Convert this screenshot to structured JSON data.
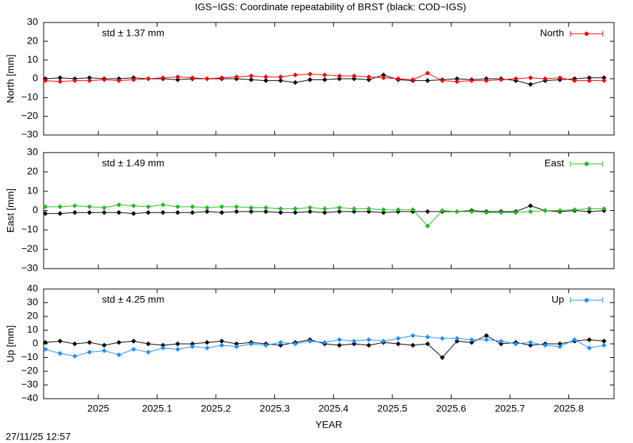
{
  "title": "IGS−IGS: Coordinate repeatability of BRST (black: COD−IGS)",
  "timestamp": "27/11/25 12:57",
  "chart_data": [
    {
      "type": "line",
      "ylabel": "North [mm]",
      "annotation": "std ± 1.37 mm",
      "annotation_color": "#ff0000",
      "legend": "top-right",
      "x": [
        2024.91,
        2024.935,
        2024.96,
        2024.985,
        2025.01,
        2025.035,
        2025.06,
        2025.085,
        2025.11,
        2025.135,
        2025.16,
        2025.185,
        2025.21,
        2025.235,
        2025.26,
        2025.285,
        2025.31,
        2025.335,
        2025.36,
        2025.385,
        2025.41,
        2025.435,
        2025.46,
        2025.485,
        2025.51,
        2025.535,
        2025.56,
        2025.585,
        2025.61,
        2025.635,
        2025.66,
        2025.685,
        2025.71,
        2025.735,
        2025.76,
        2025.785,
        2025.81,
        2025.835,
        2025.86
      ],
      "series": [
        {
          "color": "#000000",
          "values": [
            0,
            0.5,
            0,
            0.5,
            0,
            0,
            0.5,
            0,
            0,
            -0.5,
            0,
            0,
            0,
            0,
            -0.5,
            -1,
            -1,
            -2,
            -0.5,
            -0.5,
            0,
            0,
            -0.5,
            2,
            -0.5,
            -1,
            -1,
            -0.5,
            0,
            -0.5,
            0,
            0,
            -1,
            -3,
            -1,
            -0.5,
            0,
            0.5,
            0.5
          ]
        },
        {
          "name": "North",
          "color": "#ff0000",
          "values": [
            -1,
            -1.5,
            -1,
            -1,
            -0.5,
            -1,
            -0.5,
            0,
            0.5,
            1,
            0.5,
            0,
            0.5,
            1,
            1.5,
            1,
            1,
            2,
            2.5,
            2,
            1.5,
            1.5,
            1,
            0.5,
            0,
            -0.5,
            3,
            -1,
            -1.5,
            -1,
            -1,
            -0.5,
            0,
            0.5,
            0,
            0.5,
            -1,
            -1,
            -1
          ]
        }
      ],
      "xlim": [
        2024.907,
        2025.877
      ],
      "xticks": [
        2025,
        2025.1,
        2025.2,
        2025.3,
        2025.4,
        2025.5,
        2025.6,
        2025.7,
        2025.8
      ],
      "ylim": [
        -30,
        30
      ],
      "yticks": [
        {
          "value": -30,
          "label": "−30"
        },
        {
          "value": -20,
          "label": "−20"
        },
        {
          "value": -10,
          "label": "−10"
        },
        0,
        10,
        20,
        30
      ]
    },
    {
      "type": "line",
      "ylabel": "East [mm]",
      "annotation": "std ± 1.49 mm",
      "annotation_color": "#22bb22",
      "legend": "top-right",
      "x": [
        2024.91,
        2024.935,
        2024.96,
        2024.985,
        2025.01,
        2025.035,
        2025.06,
        2025.085,
        2025.11,
        2025.135,
        2025.16,
        2025.185,
        2025.21,
        2025.235,
        2025.26,
        2025.285,
        2025.31,
        2025.335,
        2025.36,
        2025.385,
        2025.41,
        2025.435,
        2025.46,
        2025.485,
        2025.51,
        2025.535,
        2025.56,
        2025.585,
        2025.61,
        2025.635,
        2025.66,
        2025.685,
        2025.71,
        2025.735,
        2025.76,
        2025.785,
        2025.81,
        2025.835,
        2025.86
      ],
      "series": [
        {
          "color": "#000000",
          "values": [
            -1.5,
            -1.5,
            -1,
            -1,
            -1,
            -1,
            -1.5,
            -1,
            -1,
            -1,
            -1,
            -0.5,
            -1,
            -0.5,
            -0.5,
            -0.5,
            -1,
            -1,
            -0.5,
            -1,
            -0.5,
            -0.5,
            -0.5,
            -1,
            -0.5,
            -0.5,
            -0.5,
            -0.5,
            -0.5,
            0,
            -0.5,
            -0.5,
            -0.5,
            2.5,
            0,
            -0.5,
            0,
            -0.5,
            0
          ]
        },
        {
          "name": "East",
          "color": "#22bb22",
          "values": [
            2,
            2,
            2.5,
            2,
            1.5,
            3,
            2.5,
            2,
            3,
            2,
            2,
            1.5,
            2,
            2,
            1.5,
            1.5,
            1,
            1,
            1.5,
            1,
            1.5,
            1,
            1,
            0.5,
            0.5,
            0.5,
            -8,
            0,
            -0.5,
            -0.5,
            -1,
            -1,
            -1,
            -0.5,
            0,
            0,
            0.5,
            1,
            1
          ]
        }
      ],
      "xlim": [
        2024.907,
        2025.877
      ],
      "xticks": [
        2025,
        2025.1,
        2025.2,
        2025.3,
        2025.4,
        2025.5,
        2025.6,
        2025.7,
        2025.8
      ],
      "ylim": [
        -30,
        30
      ],
      "yticks": [
        {
          "value": -30,
          "label": "−30"
        },
        {
          "value": -20,
          "label": "−20"
        },
        {
          "value": -10,
          "label": "−10"
        },
        0,
        10,
        20,
        30
      ]
    },
    {
      "type": "line",
      "ylabel": "Up [mm]",
      "xlabel": "YEAR",
      "annotation": "std ± 4.25 mm",
      "annotation_color": "#1e90ff",
      "legend": "top-right",
      "x": [
        2024.91,
        2024.935,
        2024.96,
        2024.985,
        2025.01,
        2025.035,
        2025.06,
        2025.085,
        2025.11,
        2025.135,
        2025.16,
        2025.185,
        2025.21,
        2025.235,
        2025.26,
        2025.285,
        2025.31,
        2025.335,
        2025.36,
        2025.385,
        2025.41,
        2025.435,
        2025.46,
        2025.485,
        2025.51,
        2025.535,
        2025.56,
        2025.585,
        2025.61,
        2025.635,
        2025.66,
        2025.685,
        2025.71,
        2025.735,
        2025.76,
        2025.785,
        2025.81,
        2025.835,
        2025.86
      ],
      "series": [
        {
          "color": "#000000",
          "values": [
            1,
            2,
            0,
            1,
            -1,
            1,
            2,
            0,
            -1,
            0,
            0,
            1,
            2,
            0,
            1,
            0,
            -1,
            1,
            3,
            0,
            -1,
            0,
            -1,
            1,
            0,
            -1,
            0,
            -10,
            2,
            1,
            6,
            0,
            1,
            -1,
            0,
            0,
            2,
            3,
            2
          ]
        },
        {
          "name": "Up",
          "color": "#1e90ff",
          "values": [
            -4,
            -7,
            -9,
            -6,
            -5,
            -8,
            -4,
            -6,
            -3,
            -4,
            -2,
            -3,
            -1,
            -2,
            0,
            -1,
            1,
            0,
            2,
            1,
            3,
            2,
            3,
            2,
            4,
            6,
            5,
            4,
            4,
            3,
            3,
            2,
            0,
            1,
            -1,
            -2,
            3,
            -3,
            -1
          ]
        }
      ],
      "xlim": [
        2024.907,
        2025.877
      ],
      "xticks": [
        2025,
        2025.1,
        2025.2,
        2025.3,
        2025.4,
        2025.5,
        2025.6,
        2025.7,
        2025.8
      ],
      "ylim": [
        -40,
        40
      ],
      "yticks": [
        {
          "value": -40,
          "label": "−40"
        },
        {
          "value": -30,
          "label": "−30"
        },
        {
          "value": -20,
          "label": "−20"
        },
        {
          "value": -10,
          "label": "−10"
        },
        0,
        10,
        20,
        30,
        40
      ]
    }
  ]
}
